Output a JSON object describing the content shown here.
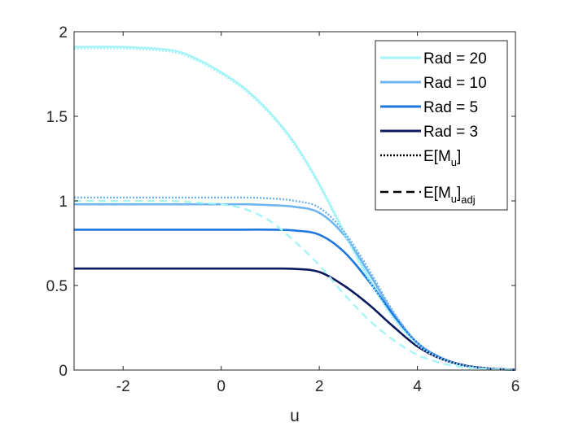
{
  "chart_data": {
    "type": "line",
    "xlabel": "u",
    "ylabel": "",
    "title": "",
    "xlim": [
      -3,
      6
    ],
    "ylim": [
      0,
      2
    ],
    "xticks": [
      -2,
      0,
      2,
      4,
      6
    ],
    "yticks": [
      0,
      0.5,
      1,
      1.5,
      2
    ],
    "xtick_labels": [
      "-2",
      "0",
      "2",
      "4",
      "6"
    ],
    "ytick_labels": [
      "0",
      "0.5",
      "1",
      "1.5",
      "2"
    ],
    "grid": false,
    "legend_position": "top-right",
    "x": [
      -3,
      -2,
      -1,
      -0.5,
      0,
      0.5,
      1,
      1.5,
      2,
      2.5,
      3,
      3.5,
      4,
      4.5,
      5,
      5.5,
      6
    ],
    "series": [
      {
        "name": "Rad = 20",
        "style": "solid",
        "color": "#a6f4f7",
        "values": [
          1.91,
          1.91,
          1.89,
          1.84,
          1.76,
          1.66,
          1.52,
          1.34,
          1.1,
          0.82,
          0.55,
          0.32,
          0.16,
          0.07,
          0.025,
          0.008,
          0.002
        ]
      },
      {
        "name": "Rad = 10",
        "style": "solid",
        "color": "#6fb4f0",
        "values": [
          0.98,
          0.98,
          0.98,
          0.98,
          0.98,
          0.98,
          0.975,
          0.965,
          0.93,
          0.8,
          0.58,
          0.34,
          0.16,
          0.07,
          0.025,
          0.008,
          0.002
        ]
      },
      {
        "name": "Rad = 5",
        "style": "solid",
        "color": "#1f78e0",
        "values": [
          0.83,
          0.83,
          0.83,
          0.83,
          0.83,
          0.83,
          0.83,
          0.825,
          0.8,
          0.7,
          0.53,
          0.33,
          0.16,
          0.07,
          0.025,
          0.008,
          0.002
        ]
      },
      {
        "name": "Rad = 3",
        "style": "solid",
        "color": "#0b1a5e",
        "values": [
          0.6,
          0.6,
          0.6,
          0.6,
          0.6,
          0.6,
          0.6,
          0.598,
          0.58,
          0.5,
          0.39,
          0.26,
          0.14,
          0.065,
          0.025,
          0.008,
          0.002
        ]
      },
      {
        "name": "E[M_u] (Rad = 20)",
        "style": "dotted",
        "color": "#a6f4f7",
        "values": [
          1.9,
          1.9,
          1.88,
          1.83,
          1.75,
          1.65,
          1.51,
          1.33,
          1.09,
          0.81,
          0.54,
          0.31,
          0.15,
          0.065,
          0.022,
          0.007,
          0.002
        ]
      },
      {
        "name": "E[M_u] (Rad = 10)",
        "style": "dotted",
        "color": "#6fb4f0",
        "values": [
          1.02,
          1.02,
          1.02,
          1.02,
          1.02,
          1.02,
          1.015,
          1.0,
          0.96,
          0.82,
          0.6,
          0.35,
          0.16,
          0.07,
          0.025,
          0.008,
          0.002
        ]
      },
      {
        "name": "E[M_u]adj (Rad = 20)",
        "style": "dashed",
        "color": "#a6f4f7",
        "values": [
          1.0,
          1.0,
          1.0,
          0.99,
          0.98,
          0.95,
          0.88,
          0.76,
          0.62,
          0.45,
          0.3,
          0.18,
          0.09,
          0.04,
          0.015,
          0.005,
          0.001
        ]
      }
    ],
    "legend": [
      {
        "label": "Rad = 20",
        "style": "solid",
        "color": "#a6f4f7"
      },
      {
        "label": "Rad = 10",
        "style": "solid",
        "color": "#6fb4f0"
      },
      {
        "label": "Rad = 5",
        "style": "solid",
        "color": "#1f78e0"
      },
      {
        "label": "Rad = 3",
        "style": "solid",
        "color": "#0b1a5e"
      },
      {
        "label_main": "E[M",
        "label_sub": "u",
        "label_close": "]",
        "label_tail_sub": "",
        "style": "dotted",
        "color": "#000000"
      },
      {
        "label_main": "E[M",
        "label_sub": "u",
        "label_close": "]",
        "label_tail_sub": "adj",
        "style": "dashed",
        "color": "#000000"
      }
    ]
  }
}
